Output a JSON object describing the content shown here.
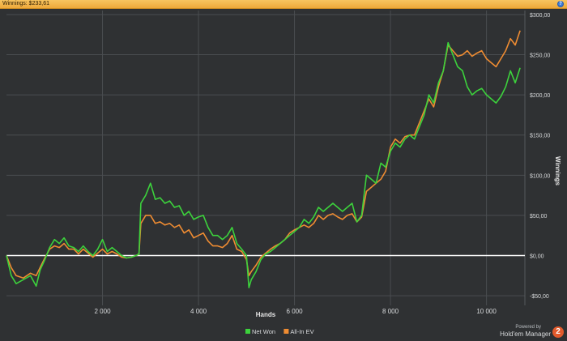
{
  "window": {
    "title": "Winnings: $233,61",
    "help_icon": "?"
  },
  "branding": {
    "powered_by": "Powered by",
    "product": "Hold'em Manager",
    "logo": "2"
  },
  "colors": {
    "background": "#2f3133",
    "grid": "#4a4d50",
    "zero_line": "#ffffff",
    "net_won": "#3cd23c",
    "all_in_ev": "#ef8c32",
    "title_bar": "#f0b040"
  },
  "chart_data": {
    "type": "line",
    "title": "",
    "xlabel": "Hands",
    "ylabel": "Winnings",
    "xlim": [
      0,
      10800
    ],
    "ylim": [
      -62,
      305
    ],
    "x_ticks": [
      2000,
      4000,
      6000,
      8000,
      10000
    ],
    "x_tick_labels": [
      "2 000",
      "4 000",
      "6 000",
      "8 000",
      "10 000"
    ],
    "y_ticks": [
      -50,
      0,
      50,
      100,
      150,
      200,
      250,
      300
    ],
    "y_tick_labels": [
      "-$50,00",
      "$0,00",
      "$50,00",
      "$100,00",
      "$150,00",
      "$200,00",
      "$250,00",
      "$300,00"
    ],
    "grid": true,
    "y_axis_side": "right",
    "legend_position": "bottom-center",
    "zero_line": 0,
    "series": [
      {
        "name": "Net Won",
        "color": "#3cd23c",
        "points": [
          [
            0,
            0
          ],
          [
            100,
            -25
          ],
          [
            200,
            -35
          ],
          [
            350,
            -30
          ],
          [
            500,
            -25
          ],
          [
            620,
            -38
          ],
          [
            700,
            -18
          ],
          [
            800,
            -5
          ],
          [
            900,
            10
          ],
          [
            1000,
            20
          ],
          [
            1100,
            15
          ],
          [
            1200,
            22
          ],
          [
            1300,
            12
          ],
          [
            1400,
            10
          ],
          [
            1500,
            5
          ],
          [
            1600,
            12
          ],
          [
            1700,
            5
          ],
          [
            1800,
            0
          ],
          [
            1900,
            8
          ],
          [
            2000,
            20
          ],
          [
            2100,
            5
          ],
          [
            2200,
            10
          ],
          [
            2300,
            5
          ],
          [
            2400,
            0
          ],
          [
            2500,
            -3
          ],
          [
            2600,
            -2
          ],
          [
            2700,
            0
          ],
          [
            2760,
            2
          ],
          [
            2800,
            65
          ],
          [
            2900,
            75
          ],
          [
            3000,
            90
          ],
          [
            3100,
            70
          ],
          [
            3200,
            72
          ],
          [
            3300,
            65
          ],
          [
            3400,
            68
          ],
          [
            3500,
            60
          ],
          [
            3600,
            62
          ],
          [
            3700,
            50
          ],
          [
            3800,
            55
          ],
          [
            3900,
            45
          ],
          [
            4000,
            48
          ],
          [
            4100,
            50
          ],
          [
            4200,
            35
          ],
          [
            4300,
            25
          ],
          [
            4400,
            25
          ],
          [
            4500,
            20
          ],
          [
            4600,
            25
          ],
          [
            4700,
            35
          ],
          [
            4800,
            15
          ],
          [
            4900,
            8
          ],
          [
            5000,
            0
          ],
          [
            5050,
            -40
          ],
          [
            5100,
            -30
          ],
          [
            5200,
            -20
          ],
          [
            5300,
            -5
          ],
          [
            5400,
            2
          ],
          [
            5500,
            5
          ],
          [
            5600,
            10
          ],
          [
            5700,
            15
          ],
          [
            5800,
            20
          ],
          [
            5900,
            25
          ],
          [
            6000,
            30
          ],
          [
            6100,
            35
          ],
          [
            6200,
            45
          ],
          [
            6300,
            40
          ],
          [
            6400,
            48
          ],
          [
            6500,
            60
          ],
          [
            6600,
            55
          ],
          [
            6700,
            60
          ],
          [
            6800,
            65
          ],
          [
            6900,
            60
          ],
          [
            7000,
            55
          ],
          [
            7100,
            60
          ],
          [
            7200,
            65
          ],
          [
            7300,
            42
          ],
          [
            7400,
            50
          ],
          [
            7500,
            100
          ],
          [
            7600,
            95
          ],
          [
            7700,
            90
          ],
          [
            7800,
            115
          ],
          [
            7900,
            110
          ],
          [
            8000,
            130
          ],
          [
            8100,
            140
          ],
          [
            8200,
            135
          ],
          [
            8300,
            145
          ],
          [
            8400,
            150
          ],
          [
            8500,
            145
          ],
          [
            8600,
            160
          ],
          [
            8700,
            175
          ],
          [
            8800,
            200
          ],
          [
            8900,
            190
          ],
          [
            9000,
            215
          ],
          [
            9100,
            230
          ],
          [
            9200,
            265
          ],
          [
            9300,
            250
          ],
          [
            9400,
            235
          ],
          [
            9500,
            230
          ],
          [
            9600,
            210
          ],
          [
            9700,
            200
          ],
          [
            9800,
            205
          ],
          [
            9900,
            208
          ],
          [
            10000,
            200
          ],
          [
            10100,
            195
          ],
          [
            10200,
            190
          ],
          [
            10300,
            198
          ],
          [
            10400,
            210
          ],
          [
            10500,
            230
          ],
          [
            10600,
            215
          ],
          [
            10700,
            233.61
          ]
        ]
      },
      {
        "name": "All-In EV",
        "color": "#ef8c32",
        "points": [
          [
            0,
            0
          ],
          [
            100,
            -15
          ],
          [
            200,
            -25
          ],
          [
            350,
            -28
          ],
          [
            500,
            -22
          ],
          [
            620,
            -25
          ],
          [
            700,
            -15
          ],
          [
            800,
            -3
          ],
          [
            900,
            8
          ],
          [
            1000,
            12
          ],
          [
            1100,
            10
          ],
          [
            1200,
            15
          ],
          [
            1300,
            8
          ],
          [
            1400,
            8
          ],
          [
            1500,
            2
          ],
          [
            1600,
            8
          ],
          [
            1700,
            3
          ],
          [
            1800,
            -2
          ],
          [
            1900,
            3
          ],
          [
            2000,
            8
          ],
          [
            2100,
            2
          ],
          [
            2200,
            5
          ],
          [
            2300,
            2
          ],
          [
            2400,
            -2
          ],
          [
            2500,
            -3
          ],
          [
            2600,
            -2
          ],
          [
            2700,
            0
          ],
          [
            2760,
            2
          ],
          [
            2800,
            40
          ],
          [
            2900,
            50
          ],
          [
            3000,
            50
          ],
          [
            3100,
            40
          ],
          [
            3200,
            42
          ],
          [
            3300,
            38
          ],
          [
            3400,
            40
          ],
          [
            3500,
            35
          ],
          [
            3600,
            38
          ],
          [
            3700,
            28
          ],
          [
            3800,
            32
          ],
          [
            3900,
            22
          ],
          [
            4000,
            25
          ],
          [
            4100,
            28
          ],
          [
            4200,
            18
          ],
          [
            4300,
            12
          ],
          [
            4400,
            12
          ],
          [
            4500,
            10
          ],
          [
            4600,
            15
          ],
          [
            4700,
            25
          ],
          [
            4800,
            8
          ],
          [
            4900,
            5
          ],
          [
            5000,
            -5
          ],
          [
            5050,
            -25
          ],
          [
            5100,
            -20
          ],
          [
            5200,
            -12
          ],
          [
            5300,
            -2
          ],
          [
            5400,
            3
          ],
          [
            5500,
            8
          ],
          [
            5600,
            12
          ],
          [
            5700,
            15
          ],
          [
            5800,
            20
          ],
          [
            5900,
            28
          ],
          [
            6000,
            32
          ],
          [
            6100,
            35
          ],
          [
            6200,
            38
          ],
          [
            6300,
            35
          ],
          [
            6400,
            40
          ],
          [
            6500,
            50
          ],
          [
            6600,
            45
          ],
          [
            6700,
            50
          ],
          [
            6800,
            52
          ],
          [
            6900,
            48
          ],
          [
            7000,
            45
          ],
          [
            7100,
            50
          ],
          [
            7200,
            52
          ],
          [
            7300,
            42
          ],
          [
            7400,
            48
          ],
          [
            7500,
            80
          ],
          [
            7600,
            85
          ],
          [
            7700,
            90
          ],
          [
            7800,
            95
          ],
          [
            7900,
            105
          ],
          [
            8000,
            135
          ],
          [
            8100,
            145
          ],
          [
            8200,
            140
          ],
          [
            8300,
            148
          ],
          [
            8400,
            150
          ],
          [
            8500,
            150
          ],
          [
            8600,
            165
          ],
          [
            8700,
            180
          ],
          [
            8800,
            195
          ],
          [
            8900,
            185
          ],
          [
            9000,
            210
          ],
          [
            9100,
            230
          ],
          [
            9200,
            262
          ],
          [
            9300,
            255
          ],
          [
            9400,
            248
          ],
          [
            9500,
            250
          ],
          [
            9600,
            255
          ],
          [
            9700,
            248
          ],
          [
            9800,
            252
          ],
          [
            9900,
            255
          ],
          [
            10000,
            245
          ],
          [
            10100,
            240
          ],
          [
            10200,
            235
          ],
          [
            10300,
            245
          ],
          [
            10400,
            255
          ],
          [
            10500,
            270
          ],
          [
            10600,
            262
          ],
          [
            10700,
            280
          ]
        ]
      }
    ]
  }
}
